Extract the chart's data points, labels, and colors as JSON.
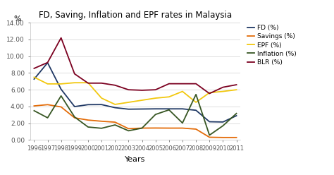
{
  "title": "FD, Saving, Inflation and EPF rates in Malaysia",
  "xlabel": "Years",
  "ylabel": "%",
  "years": [
    1996,
    1997,
    1998,
    1999,
    2000,
    2001,
    2002,
    2003,
    2004,
    2005,
    2006,
    2007,
    2008,
    2009,
    2010,
    2011
  ],
  "series": {
    "FD (%)": [
      7.27,
      9.22,
      6.06,
      3.99,
      4.22,
      4.23,
      3.86,
      3.68,
      3.7,
      3.72,
      3.72,
      3.72,
      3.55,
      2.18,
      2.15,
      2.9
    ],
    "Savings (%)": [
      4.07,
      4.22,
      3.95,
      2.65,
      2.38,
      2.24,
      2.13,
      1.35,
      1.42,
      1.43,
      1.42,
      1.42,
      1.3,
      0.33,
      0.3,
      0.3
    ],
    "EPF (%)": [
      7.5,
      6.7,
      6.7,
      6.84,
      6.84,
      5.0,
      4.25,
      4.5,
      4.75,
      5.0,
      5.15,
      5.8,
      4.5,
      5.65,
      5.8,
      6.0
    ],
    "Inflation (%)": [
      3.5,
      2.65,
      5.27,
      2.75,
      1.55,
      1.4,
      1.8,
      1.1,
      1.42,
      3.05,
      3.6,
      2.03,
      5.44,
      0.58,
      1.7,
      3.17
    ],
    "BLR (%)": [
      8.55,
      9.25,
      12.2,
      7.9,
      6.79,
      6.79,
      6.54,
      6.0,
      5.94,
      6.0,
      6.72,
      6.72,
      6.72,
      5.55,
      6.3,
      6.6
    ]
  },
  "colors": {
    "FD (%)": "#1f3864",
    "Savings (%)": "#e36c09",
    "EPF (%)": "#f2c80f",
    "Inflation (%)": "#375623",
    "BLR (%)": "#7b0020"
  },
  "ylim": [
    0.0,
    14.0
  ],
  "yticks": [
    0.0,
    2.0,
    4.0,
    6.0,
    8.0,
    10.0,
    12.0,
    14.0
  ],
  "bg_color": "#ffffff",
  "plot_bg_color": "#ffffff",
  "grid_color": "#d0d0d0"
}
